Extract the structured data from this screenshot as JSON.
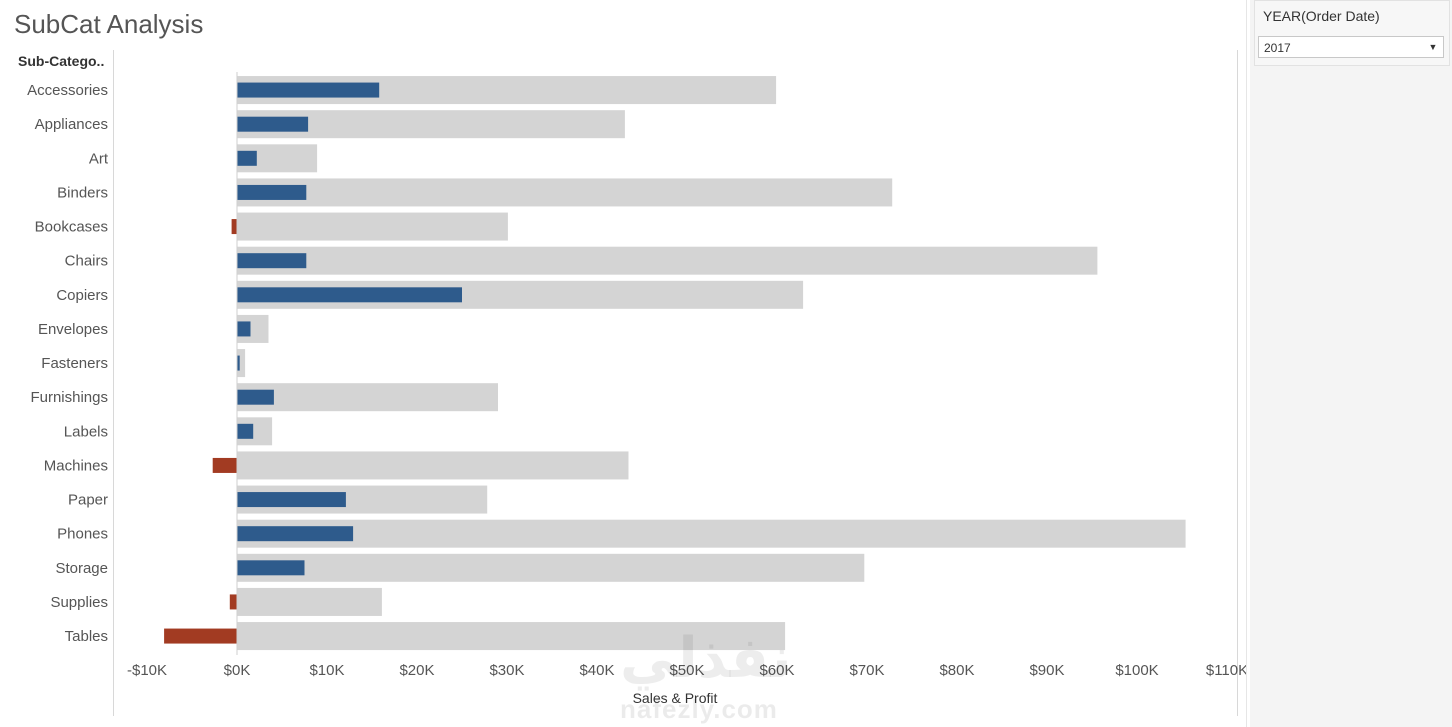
{
  "dashboard": {
    "title": "SubCat Analysis"
  },
  "filter": {
    "title": "YEAR(Order Date)",
    "value": "2017"
  },
  "watermark": {
    "logo_text": "نفذلي",
    "url": "nafezly.com"
  },
  "chart_data": {
    "type": "bar",
    "orientation": "horizontal",
    "dimension_header": "Sub-Catego..",
    "categories": [
      "Accessories",
      "Appliances",
      "Art",
      "Binders",
      "Bookcases",
      "Chairs",
      "Copiers",
      "Envelopes",
      "Fasteners",
      "Furnishings",
      "Labels",
      "Machines",
      "Paper",
      "Phones",
      "Storage",
      "Supplies",
      "Tables"
    ],
    "series": [
      {
        "name": "Sales",
        "values": [
          59900,
          43100,
          8900,
          72800,
          30100,
          95600,
          62900,
          3500,
          900,
          29000,
          3900,
          43500,
          27800,
          105400,
          69700,
          16100,
          60900
        ],
        "color": "#d4d4d4"
      },
      {
        "name": "Profit",
        "values": [
          15800,
          7900,
          2200,
          7700,
          -600,
          7700,
          25000,
          1500,
          300,
          4100,
          1800,
          -2700,
          12100,
          12900,
          7500,
          -800,
          -8100
        ],
        "color_positive": "#2e5b8c",
        "color_negative": "#a23b22"
      }
    ],
    "xlim": [
      -10000,
      110000
    ],
    "x_ticks": [
      -10000,
      0,
      10000,
      20000,
      30000,
      40000,
      50000,
      60000,
      70000,
      80000,
      90000,
      100000,
      110000
    ],
    "x_tick_labels": [
      "-$10K",
      "$0K",
      "$10K",
      "$20K",
      "$30K",
      "$40K",
      "$50K",
      "$60K",
      "$70K",
      "$80K",
      "$90K",
      "$100K",
      "$110K"
    ],
    "xlabel": "Sales & Profit",
    "grid": false,
    "zero_line": true
  }
}
